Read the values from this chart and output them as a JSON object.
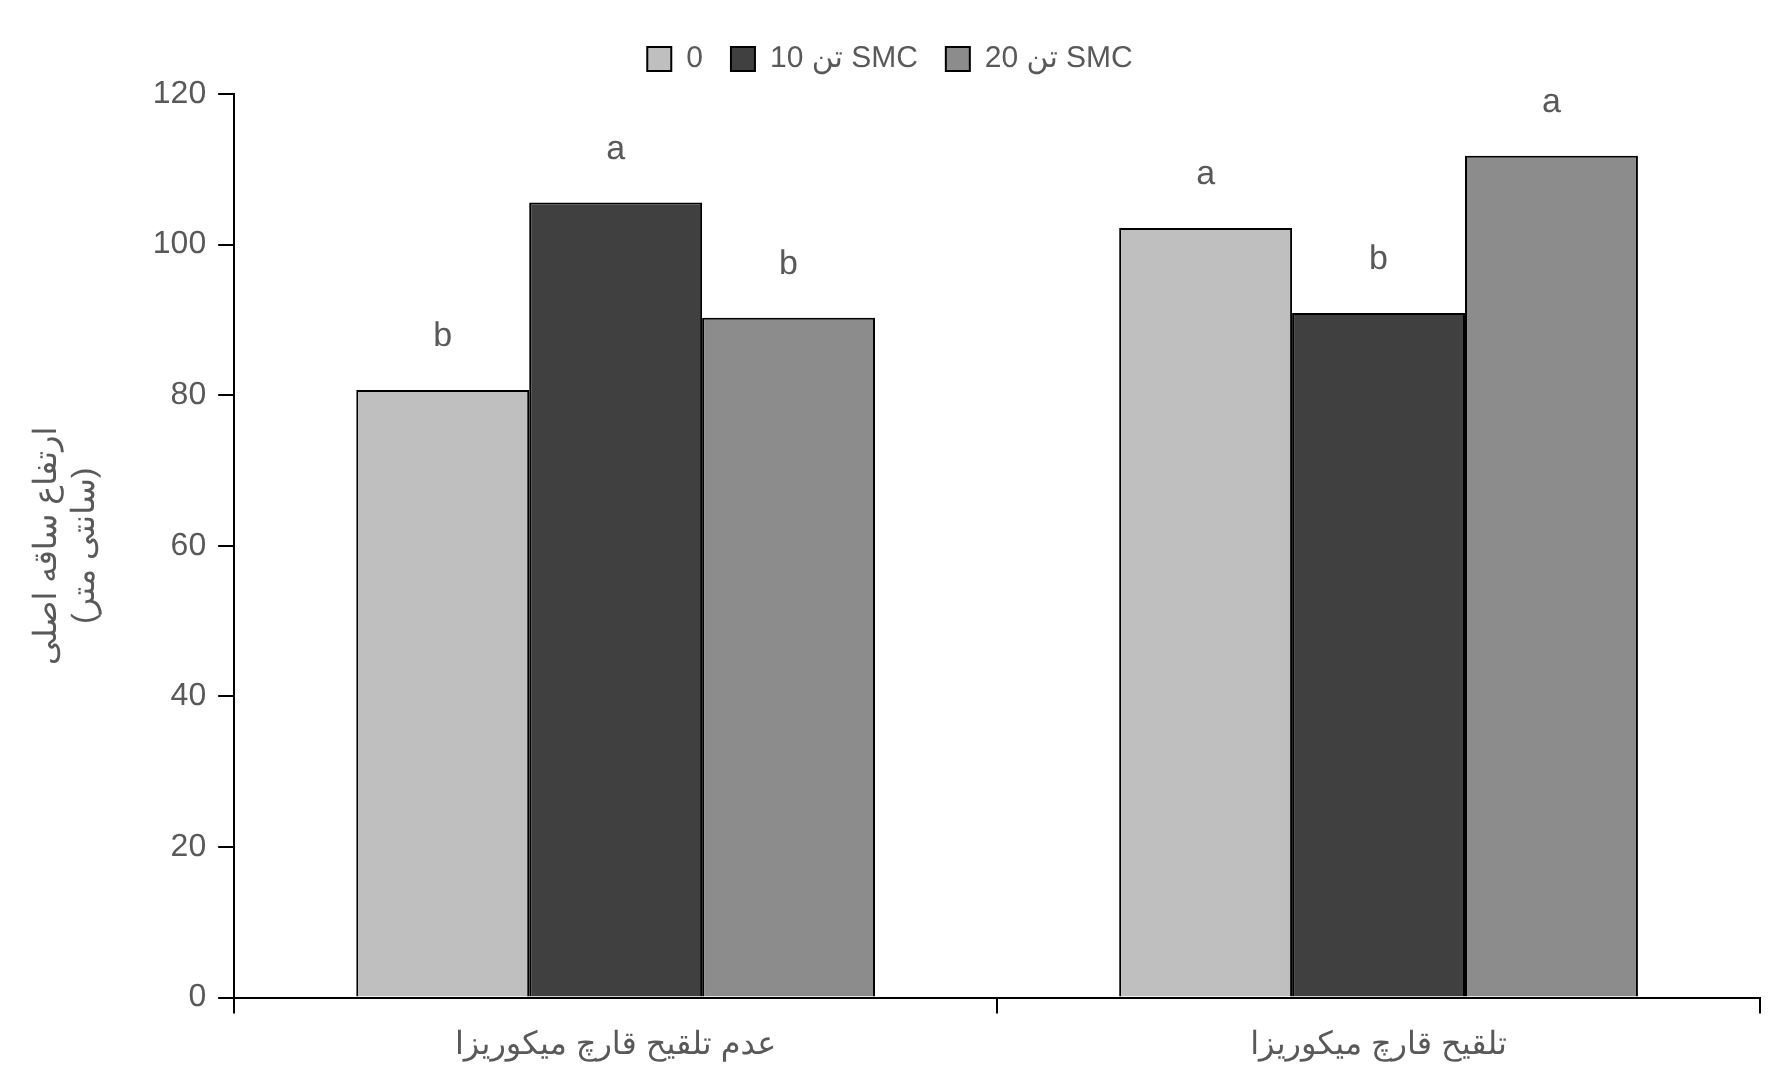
{
  "chart_data": {
    "type": "bar",
    "categories": [
      "عدم تلقیح قارچ میکوریزا",
      "تلقیح قارچ میکوریزا"
    ],
    "ylabel": "ارتفاع ساقه اصلی\n(سانتی متر)",
    "series": [
      {
        "name": "0",
        "color": "#bfbfbf",
        "values": [
          80.7,
          102.2
        ],
        "value_labels": [
          "b",
          "a"
        ]
      },
      {
        "name": "10 تن SMC",
        "color": "#404040",
        "values": [
          105.6,
          90.9
        ],
        "value_labels": [
          "a",
          "b"
        ]
      },
      {
        "name": "20 تن SMC",
        "color": "#8c8c8c",
        "values": [
          90.3,
          111.8
        ],
        "value_labels": [
          "b",
          "a"
        ]
      }
    ],
    "ylim": [
      0,
      120
    ],
    "yticks": [
      0,
      20,
      40,
      60,
      80,
      100,
      120
    ],
    "grid": false,
    "legend": "top"
  }
}
